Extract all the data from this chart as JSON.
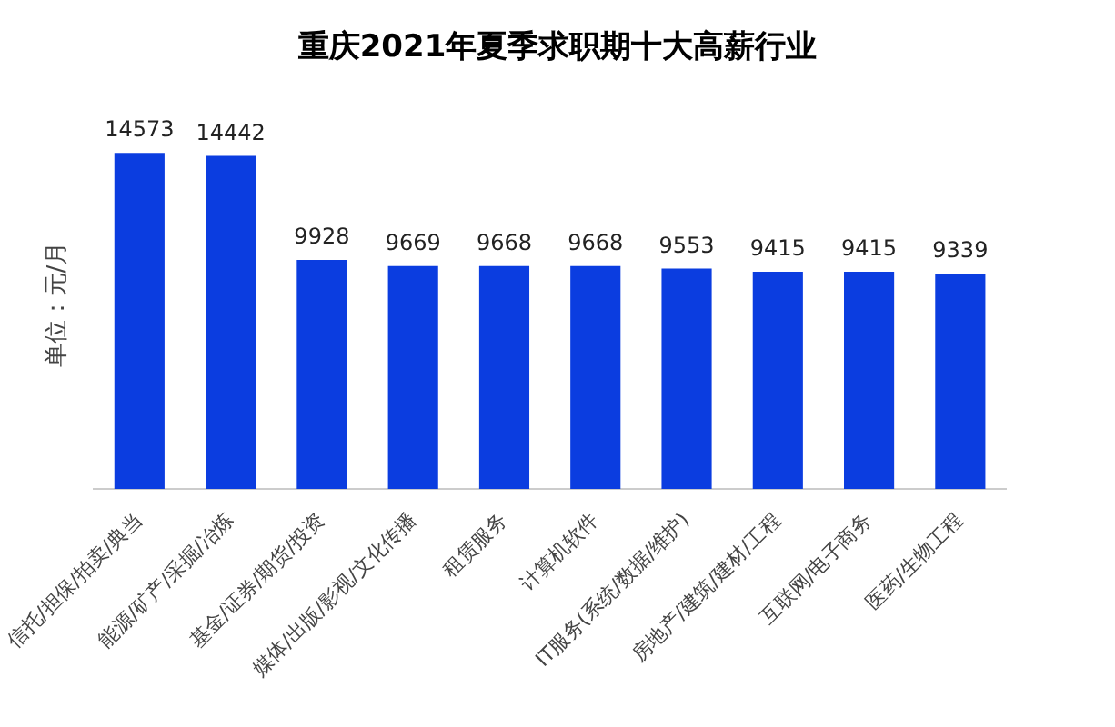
{
  "chart_data": {
    "type": "bar",
    "title": "重庆2021年夏季求职期十大高薪行业",
    "ylabel": "单位：元/月",
    "categories": [
      "信托/担保/拍卖/典当",
      "能源/矿产/采掘/冶炼",
      "基金/证券/期货/投资",
      "媒体/出版/影视/文化传播",
      "租赁服务",
      "计算机软件",
      "IT服务(系统/数据/维护)",
      "房地产/建筑/建材/工程",
      "互联网/电子商务",
      "医药/生物工程"
    ],
    "values": [
      14573,
      14442,
      9928,
      9669,
      9668,
      9668,
      9553,
      9415,
      9415,
      9339
    ],
    "color": "#0b3de0",
    "data_labels": true,
    "grid": false,
    "legend": false
  }
}
